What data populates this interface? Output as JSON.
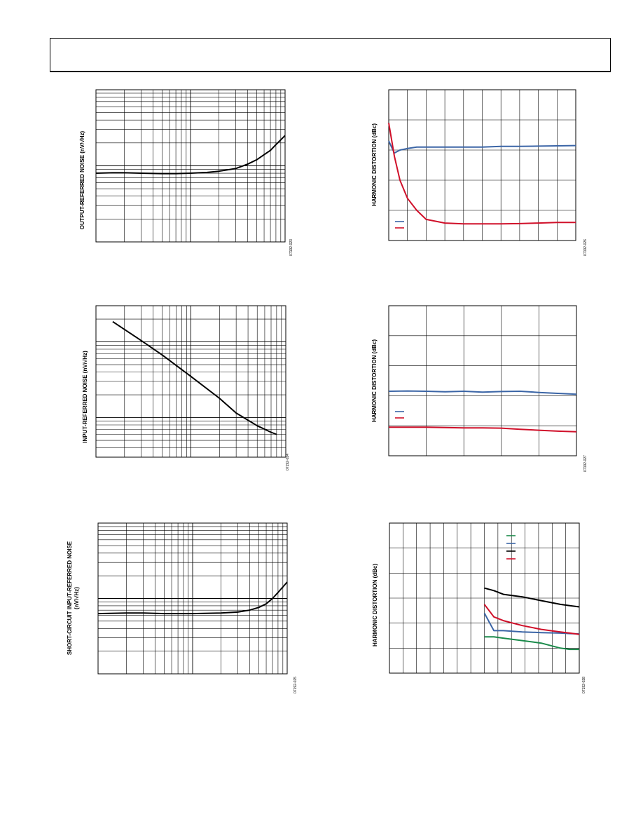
{
  "page": {
    "header_title": ""
  },
  "chart_data": [
    {
      "id": "p1",
      "type": "line",
      "ylabel": "OUTPUT-REFERRED NOISE (nV/√Hz)",
      "figure_id": "07192-023",
      "xscale": "log",
      "yscale": "log",
      "xlim": [
        1,
        100
      ],
      "ylim": [
        1,
        100
      ],
      "series": [
        {
          "name": "",
          "color": "#000000",
          "x": [
            1,
            1.5,
            2,
            3,
            5,
            7,
            10,
            15,
            20,
            30,
            40,
            50,
            60,
            70,
            80,
            100
          ],
          "y": [
            8.0,
            8.1,
            8.1,
            8.0,
            7.9,
            7.9,
            8.0,
            8.2,
            8.5,
            9.2,
            10.5,
            12,
            14,
            16,
            19,
            25
          ]
        }
      ]
    },
    {
      "id": "p2",
      "type": "line",
      "ylabel": "INPUT-REFERRED NOISE (nV/√Hz)",
      "figure_id": "07192-024",
      "xscale": "log",
      "yscale": "log",
      "xlim": [
        1,
        100
      ],
      "ylim": [
        0.3,
        30
      ],
      "series": [
        {
          "name": "",
          "color": "#000000",
          "x": [
            1.5,
            3,
            5,
            10,
            20,
            30,
            50,
            70,
            80
          ],
          "y": [
            18.5,
            10.4,
            6.7,
            3.5,
            1.8,
            1.15,
            0.78,
            0.64,
            0.6
          ]
        }
      ]
    },
    {
      "id": "p3",
      "type": "line",
      "ylabel": "SHORT-CIRCUIT INPUT-REFERRED NOISE",
      "ylabel2": "(nV/√Hz)",
      "figure_id": "07192-025",
      "xscale": "log",
      "yscale": "log",
      "xlim": [
        1,
        100
      ],
      "ylim": [
        1,
        100
      ],
      "series": [
        {
          "name": "",
          "color": "#000000",
          "x": [
            1,
            2,
            3,
            5,
            10,
            20,
            30,
            40,
            50,
            60,
            70,
            80,
            100
          ],
          "y": [
            6.3,
            6.4,
            6.4,
            6.3,
            6.3,
            6.4,
            6.6,
            7.0,
            7.6,
            8.5,
            10,
            12,
            16.5
          ]
        }
      ]
    },
    {
      "id": "p4",
      "type": "line",
      "ylabel": "HARMONIC DISTORTION (dBc)",
      "figure_id": "07192-026",
      "xlim": [
        0,
        10
      ],
      "ylim": [
        -100,
        -50
      ],
      "series": [
        {
          "name": "",
          "color": "#3b65a6",
          "x": [
            0,
            0.3,
            0.6,
            1,
            1.5,
            2,
            3,
            4,
            5,
            6,
            7,
            8,
            9,
            10
          ],
          "y": [
            -67,
            -71,
            -70,
            -69.5,
            -69,
            -69,
            -69,
            -69,
            -69,
            -68.8,
            -68.8,
            -68.7,
            -68.6,
            -68.5
          ]
        },
        {
          "name": "",
          "color": "#d0102a",
          "x": [
            0,
            0.3,
            0.6,
            1,
            1.5,
            2,
            3,
            4,
            5,
            6,
            7,
            8,
            9,
            10
          ],
          "y": [
            -61,
            -72,
            -80,
            -86,
            -90,
            -93,
            -94.2,
            -94.5,
            -94.5,
            -94.5,
            -94.4,
            -94.2,
            -94,
            -94
          ]
        }
      ]
    },
    {
      "id": "p5",
      "type": "line",
      "ylabel": "HARMONIC DISTORTION (dBc)",
      "figure_id": "07192-027",
      "xlim": [
        0,
        5
      ],
      "ylim": [
        -100,
        -50
      ],
      "series": [
        {
          "name": "",
          "color": "#3b65a6",
          "x": [
            0,
            0.5,
            1,
            1.5,
            2,
            2.5,
            3,
            3.5,
            4,
            4.5,
            5
          ],
          "y": [
            -78.5,
            -78.4,
            -78.5,
            -78.7,
            -78.5,
            -78.8,
            -78.6,
            -78.5,
            -78.9,
            -79.2,
            -79.5
          ]
        },
        {
          "name": "",
          "color": "#d0102a",
          "x": [
            0,
            0.5,
            1,
            1.5,
            2,
            2.5,
            3,
            3.5,
            4,
            4.5,
            5
          ],
          "y": [
            -90.5,
            -90.5,
            -90.5,
            -90.6,
            -90.7,
            -90.7,
            -90.8,
            -91.2,
            -91.5,
            -91.8,
            -92
          ]
        }
      ]
    },
    {
      "id": "p6",
      "type": "line",
      "ylabel": "HARMONIC DISTORTION (dBc)",
      "figure_id": "07192-028",
      "xlim": [
        0,
        10
      ],
      "ylim": [
        -110,
        -50
      ],
      "legend": [
        "",
        "",
        "",
        ""
      ],
      "legend_colors": [
        "#1a8a4a",
        "#3b65a6",
        "#000000",
        "#d0102a"
      ],
      "series": [
        {
          "name": "",
          "color": "#1a8a4a",
          "x": [
            5,
            5.5,
            6,
            7,
            8,
            9,
            9.5,
            10
          ],
          "y": [
            -95.5,
            -95.5,
            -96,
            -97,
            -98,
            -100,
            -100.5,
            -100.5
          ]
        },
        {
          "name": "",
          "color": "#3b65a6",
          "x": [
            5,
            5.5,
            6,
            7,
            8,
            9,
            9.5,
            10
          ],
          "y": [
            -86,
            -93,
            -93,
            -93.5,
            -93.8,
            -94,
            -94.2,
            -94.3
          ]
        },
        {
          "name": "",
          "color": "#000000",
          "x": [
            5,
            5.5,
            6,
            7,
            8,
            9,
            9.5,
            10
          ],
          "y": [
            -76,
            -77,
            -78.5,
            -79.5,
            -81,
            -82.5,
            -83,
            -83.5
          ]
        },
        {
          "name": "",
          "color": "#d0102a",
          "x": [
            5,
            5.5,
            6,
            7,
            8,
            9,
            9.5,
            10
          ],
          "y": [
            -82.5,
            -87.5,
            -89,
            -91,
            -92.5,
            -93.5,
            -94,
            -94.5
          ]
        }
      ]
    }
  ]
}
